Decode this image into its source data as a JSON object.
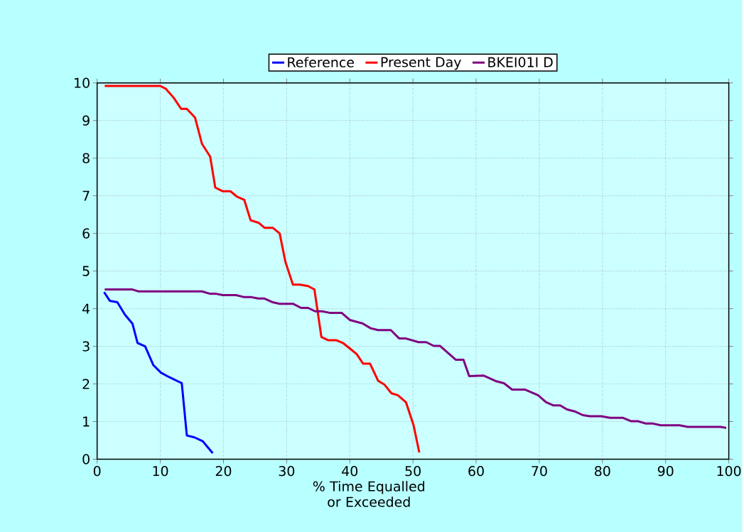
{
  "chart_data": {
    "type": "line",
    "xlabel": "% Time Equalled or Exceeded",
    "xlim": [
      0,
      100
    ],
    "xticks": [
      0,
      10,
      20,
      30,
      40,
      50,
      60,
      70,
      80,
      90,
      100
    ],
    "ylim": [
      0,
      10
    ],
    "yticks": [
      0,
      1,
      2,
      3,
      4,
      5,
      6,
      7,
      8,
      9,
      10
    ],
    "grid": true,
    "legend": "top",
    "line_style": "solid",
    "series": [
      {
        "name": "Reference",
        "color": "#0000ff",
        "x": [
          1.1,
          2.0,
          3.2,
          4.4,
          5.6,
          6.4,
          7.6,
          8.9,
          10.1,
          11.3,
          13.4,
          14.2,
          15.4,
          16.7,
          18.3
        ],
        "values": [
          4.44,
          4.21,
          4.17,
          3.84,
          3.6,
          3.09,
          3.0,
          2.5,
          2.3,
          2.19,
          2.02,
          0.63,
          0.58,
          0.48,
          0.16
        ]
      },
      {
        "name": "Present Day",
        "color": "#ff0000",
        "x": [
          1.2,
          10.0,
          10.9,
          12.1,
          13.3,
          14.2,
          15.5,
          16.6,
          17.9,
          18.7,
          19.9,
          21.1,
          22.2,
          23.3,
          24.3,
          25.6,
          26.5,
          27.8,
          28.9,
          29.8,
          31.0,
          32.1,
          33.4,
          34.4,
          35.5,
          36.6,
          37.9,
          38.9,
          40.1,
          41.1,
          42.1,
          43.2,
          44.5,
          45.5,
          46.6,
          47.6,
          48.9,
          50.1,
          51.0
        ],
        "values": [
          9.92,
          9.92,
          9.84,
          9.61,
          9.31,
          9.31,
          9.08,
          8.38,
          8.04,
          7.22,
          7.12,
          7.12,
          6.97,
          6.89,
          6.35,
          6.28,
          6.15,
          6.15,
          6.0,
          5.25,
          4.64,
          4.64,
          4.6,
          4.51,
          3.25,
          3.16,
          3.16,
          3.09,
          2.93,
          2.79,
          2.54,
          2.54,
          2.08,
          1.98,
          1.75,
          1.7,
          1.51,
          0.9,
          0.18
        ]
      },
      {
        "name": "BKEI01I D",
        "color": "#800080",
        "x": [
          1.2,
          5.6,
          6.5,
          16.6,
          17.8,
          18.7,
          19.9,
          22.0,
          23.2,
          24.3,
          25.5,
          26.5,
          27.8,
          28.9,
          31.0,
          32.3,
          33.4,
          34.5,
          35.6,
          36.8,
          38.7,
          40.0,
          42.0,
          43.3,
          44.5,
          46.5,
          47.8,
          48.8,
          50.9,
          52.1,
          53.3,
          54.3,
          56.8,
          58.0,
          58.9,
          61.2,
          61.9,
          63.2,
          64.4,
          65.7,
          67.7,
          69.8,
          71.1,
          72.2,
          73.3,
          74.4,
          75.6,
          76.9,
          78.0,
          79.8,
          81.2,
          83.2,
          84.5,
          85.6,
          86.8,
          87.9,
          89.2,
          92.2,
          93.5,
          98.7,
          99.6
        ],
        "values": [
          4.51,
          4.51,
          4.46,
          4.46,
          4.4,
          4.4,
          4.36,
          4.36,
          4.31,
          4.31,
          4.27,
          4.27,
          4.17,
          4.13,
          4.13,
          4.02,
          4.02,
          3.93,
          3.93,
          3.89,
          3.89,
          3.7,
          3.61,
          3.48,
          3.43,
          3.43,
          3.21,
          3.21,
          3.11,
          3.11,
          3.01,
          3.01,
          2.64,
          2.64,
          2.21,
          2.22,
          2.17,
          2.07,
          2.02,
          1.85,
          1.85,
          1.7,
          1.51,
          1.43,
          1.43,
          1.32,
          1.27,
          1.17,
          1.14,
          1.14,
          1.1,
          1.1,
          1.01,
          1.01,
          0.95,
          0.95,
          0.9,
          0.9,
          0.86,
          0.86,
          0.83
        ]
      }
    ]
  }
}
